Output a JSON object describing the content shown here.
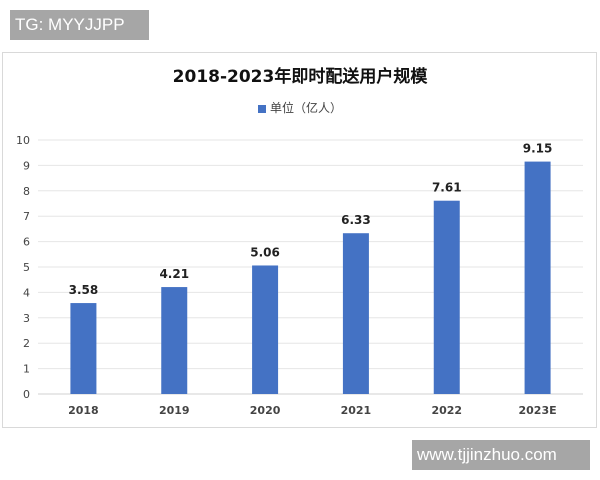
{
  "watermarks": {
    "top_left": "TG: MYYJJPP",
    "bottom_right": "www.tjjinzhuo.com"
  },
  "chart": {
    "title": "2018-2023年即时配送用户规模",
    "legend_label": "单位（亿人）",
    "bar_color": "#4472c4"
  },
  "chart_data": {
    "type": "bar",
    "title": "2018-2023年即时配送用户规模",
    "categories": [
      "2018",
      "2019",
      "2020",
      "2021",
      "2022",
      "2023E"
    ],
    "series": [
      {
        "name": "单位（亿人）",
        "values": [
          3.58,
          4.21,
          5.06,
          6.33,
          7.61,
          9.15
        ]
      }
    ],
    "xlabel": "",
    "ylabel": "",
    "ylim": [
      0,
      10
    ],
    "yticks": [
      0,
      1,
      2,
      3,
      4,
      5,
      6,
      7,
      8,
      9,
      10
    ],
    "grid": true,
    "legend_position": "top",
    "data_labels": [
      "3.58",
      "4.21",
      "5.06",
      "6.33",
      "7.61",
      "9.15"
    ]
  }
}
